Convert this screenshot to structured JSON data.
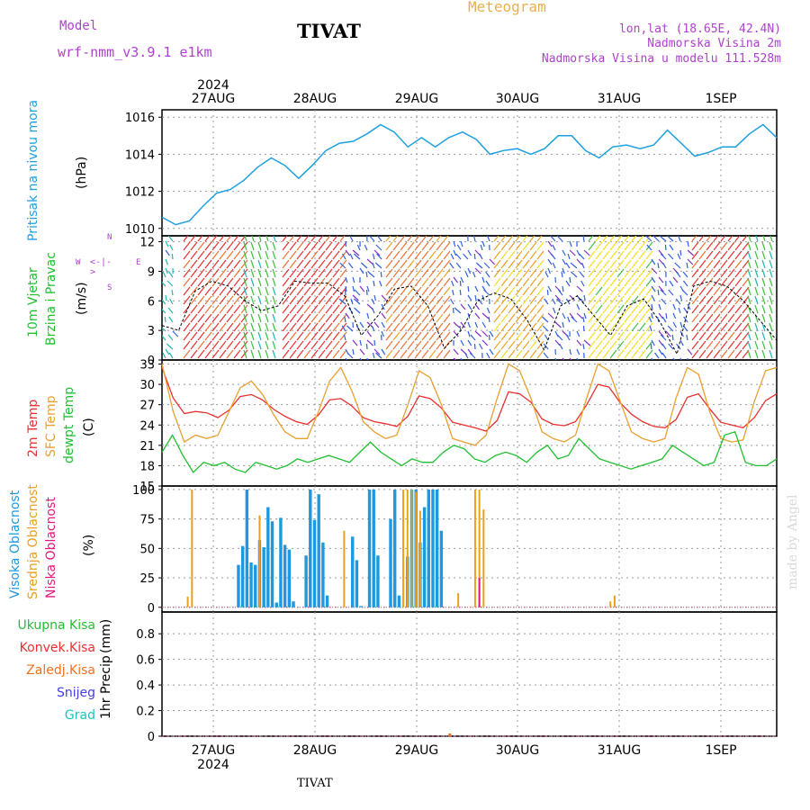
{
  "header": {
    "model_label": "Model",
    "model_name": "wrf-nmm_v3.9.1 e1km",
    "station": "TIVAT",
    "product": "Meteogram",
    "lonlat": "lon,lat (18.65E, 42.4N)",
    "elevation": "Nadmorska Visina 2m",
    "model_elevation": "Nadmorska Visina u modelu 111.528m"
  },
  "footer": {
    "station": "TIVAT",
    "credit": "made by Angel"
  },
  "colors": {
    "pressure": "#1ea0e0",
    "temp2m": "#e83030",
    "sfctemp": "#e8a030",
    "dewpt": "#20c030",
    "high_cloud": "#1e98e0",
    "mid_cloud": "#e8a020",
    "low_cloud": "#e01878",
    "total_precip": "#20c030",
    "conv_precip": "#e83030",
    "frz_precip": "#f07020",
    "snow": "#4040e0",
    "hail": "#20c0c0",
    "wind_icon": "#b040d0"
  },
  "time_axis": {
    "year": "2024",
    "days": [
      "27AUG",
      "28AUG",
      "29AUG",
      "30AUG",
      "31AUG",
      "1SEP"
    ],
    "start": "26AUG 12Z",
    "step_hours": 3
  },
  "chart_data": [
    {
      "type": "line",
      "id": "pressure",
      "ylabel": "Pritisak na nivou mora",
      "unit": "(hPa)",
      "ylim": [
        1009.6,
        1016.4
      ],
      "yticks": [
        1010,
        1012,
        1014,
        1016
      ],
      "grid": true,
      "series": [
        {
          "values": [
            1010.6,
            1010.2,
            1010.4,
            1011.2,
            1011.9,
            1012.1,
            1012.6,
            1013.3,
            1013.8,
            1013.4,
            1012.7,
            1013.4,
            1014.2,
            1014.6,
            1014.7,
            1015.1,
            1015.6,
            1015.2,
            1014.4,
            1014.9,
            1014.4,
            1014.9,
            1015.2,
            1014.8,
            1014.0,
            1014.2,
            1014.3,
            1014.0,
            1014.3,
            1015.0,
            1015.0,
            1014.2,
            1013.8,
            1014.4,
            1014.5,
            1014.3,
            1014.5,
            1015.3,
            1014.6,
            1013.9,
            1014.1,
            1014.4,
            1014.4,
            1015.1,
            1015.6,
            1014.9
          ]
        }
      ]
    },
    {
      "type": "line",
      "id": "wind",
      "ylabel": "10m Vjetar",
      "ylabel2": "Brzina i Pravac",
      "unit": "(m/s)",
      "compass": [
        "W",
        "E",
        "N",
        "S"
      ],
      "ylim": [
        0,
        12.6
      ],
      "yticks": [
        0,
        3,
        6,
        9,
        12
      ],
      "grid": true,
      "series": [
        {
          "name": "speed",
          "values": [
            3.5,
            3.0,
            7.0,
            8.0,
            7.5,
            6.0,
            5.0,
            5.5,
            8.0,
            7.8,
            7.8,
            6.5,
            2.5,
            4.5,
            7.2,
            7.5,
            5.5,
            1.2,
            3.0,
            6.0,
            6.8,
            6.2,
            4.0,
            1.0,
            5.5,
            6.5,
            4.5,
            2.5,
            5.5,
            6.2,
            3.8,
            0.6,
            7.5,
            8.0,
            7.5,
            6.0,
            4.0,
            2.0
          ]
        }
      ]
    },
    {
      "type": "line",
      "id": "temperature",
      "ylabel": "2m Temp",
      "ylabel2": "SFC Temp",
      "ylabel3": "dewpt Temp",
      "unit": "(C)",
      "ylim": [
        15,
        33.6
      ],
      "yticks": [
        15,
        18,
        21,
        24,
        27,
        30,
        33
      ],
      "grid": true,
      "series": [
        {
          "name": "2m Temp",
          "values": [
            32.5,
            28.0,
            25.7,
            26.0,
            25.8,
            25.1,
            26.2,
            28.2,
            28.5,
            27.7,
            26.3,
            25.3,
            24.5,
            24.1,
            25.5,
            27.7,
            27.9,
            26.8,
            25.1,
            24.5,
            24.2,
            23.8,
            25.3,
            28.3,
            27.9,
            26.5,
            24.4,
            24.0,
            23.6,
            23.1,
            24.7,
            28.9,
            28.6,
            27.4,
            24.9,
            24.1,
            23.9,
            24.5,
            27.0,
            30.0,
            29.6,
            27.3,
            25.6,
            24.5,
            23.8,
            23.6,
            24.8,
            28.1,
            28.6,
            26.4,
            24.4,
            24.0,
            23.6,
            25.1,
            27.6,
            28.6
          ]
        },
        {
          "name": "SFC Temp",
          "values": [
            33.0,
            26.0,
            21.5,
            22.5,
            22.0,
            22.5,
            26.0,
            29.5,
            30.5,
            28.5,
            25.5,
            23.0,
            22.0,
            22.0,
            26.0,
            30.5,
            32.5,
            29.0,
            24.5,
            23.0,
            22.0,
            22.5,
            27.0,
            32.0,
            31.0,
            27.0,
            22.0,
            21.5,
            21.0,
            22.5,
            28.0,
            33.0,
            32.0,
            28.0,
            23.0,
            22.0,
            21.5,
            22.5,
            28.0,
            33.0,
            32.0,
            27.5,
            23.0,
            22.0,
            21.5,
            22.0,
            28.0,
            32.5,
            31.5,
            26.0,
            22.0,
            21.5,
            21.8,
            27.5,
            32.0,
            32.5
          ]
        },
        {
          "name": "dewpt Temp",
          "values": [
            20.0,
            22.5,
            19.5,
            17.0,
            18.5,
            18.0,
            18.5,
            17.5,
            17.0,
            18.5,
            18.0,
            17.5,
            18.0,
            19.0,
            18.5,
            19.0,
            19.5,
            19.0,
            18.5,
            20.0,
            21.5,
            20.0,
            19.0,
            18.0,
            19.0,
            18.5,
            18.5,
            20.0,
            21.0,
            20.5,
            19.0,
            18.5,
            19.5,
            20.0,
            19.5,
            18.5,
            20.0,
            21.0,
            19.0,
            19.5,
            22.0,
            20.5,
            19.0,
            18.5,
            18.0,
            17.5,
            18.0,
            18.5,
            19.0,
            21.0,
            20.0,
            19.0,
            18.0,
            18.5,
            22.5,
            23.0,
            18.5,
            18.0,
            18.0,
            19.0
          ]
        }
      ]
    },
    {
      "type": "bar",
      "id": "clouds",
      "ylabel": "Visoka Oblacnost",
      "ylabel2": "Srednja Oblacnost",
      "ylabel3": "Niska Oblacnost",
      "unit": "(%)",
      "ylim": [
        -4,
        103
      ],
      "yticks": [
        0,
        25,
        50,
        75,
        100
      ],
      "grid": true,
      "series": [
        {
          "name": "Visoka Oblacnost",
          "start_index": 21,
          "values": [
            36,
            52,
            100,
            38,
            36,
            57,
            51,
            85,
            73,
            4,
            76,
            53,
            49,
            5,
            0,
            0,
            44,
            100,
            74,
            96,
            55,
            10,
            0,
            0,
            0,
            0,
            0,
            60,
            40,
            1,
            0,
            100,
            100,
            44,
            0,
            0,
            75,
            100,
            10,
            0,
            43,
            100,
            100,
            55,
            85,
            100,
            100,
            100,
            65
          ]
        },
        {
          "name": "Srednja Oblacnost",
          "values_at": [
            [
              9,
              9
            ],
            [
              10,
              100
            ],
            [
              26,
              78
            ],
            [
              46,
              65
            ],
            [
              60,
              100
            ],
            [
              61,
              100
            ],
            [
              62,
              100
            ],
            [
              63,
              98
            ],
            [
              64,
              82
            ],
            [
              73,
              12
            ],
            [
              77,
              100
            ],
            [
              78,
              100
            ],
            [
              79,
              83
            ],
            [
              109,
              5
            ],
            [
              110,
              10
            ]
          ]
        },
        {
          "name": "Niska Oblacnost",
          "values_at": [
            [
              78,
              25
            ]
          ]
        }
      ]
    },
    {
      "type": "bar",
      "id": "precip",
      "ylabel": "1hr Precip",
      "unit": "(mm)",
      "legend": [
        "Ukupna Kisa",
        "Konvek.Kisa",
        "Zaledj.Kisa",
        "Snijeg",
        "Grad"
      ],
      "ylim": [
        0,
        0.97
      ],
      "yticks": [
        0,
        0.2,
        0.4,
        0.6,
        0.8
      ],
      "ytick_labels": [
        "0",
        "0.2",
        "0.4",
        "0.6",
        "0.8"
      ],
      "grid": true,
      "series": [
        {
          "name": "Zaledj.Kisa",
          "values_at": [
            [
              71,
              0.01
            ]
          ]
        }
      ]
    }
  ]
}
